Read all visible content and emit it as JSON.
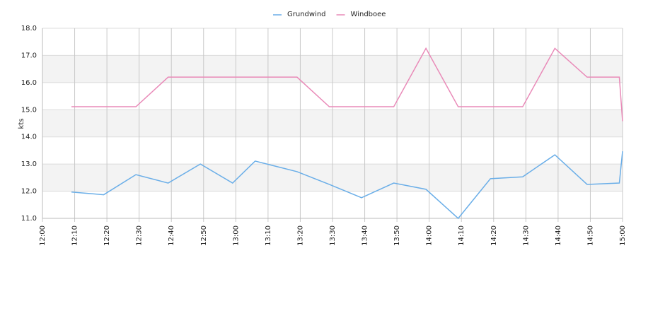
{
  "chart_data": {
    "type": "line",
    "y_label": "kts",
    "x": [
      "12:09",
      "12:19",
      "12:29",
      "12:39",
      "12:49",
      "12:59",
      "13:06",
      "13:19",
      "13:29",
      "13:39",
      "13:49",
      "13:59",
      "14:09",
      "14:19",
      "14:29",
      "14:39",
      "14:49",
      "14:59",
      "15:00"
    ],
    "series": [
      {
        "name": "Grundwind",
        "color": "#6aaee8",
        "values": [
          11.97,
          11.87,
          12.61,
          12.3,
          13.0,
          12.3,
          13.11,
          12.72,
          12.25,
          11.76,
          12.3,
          12.07,
          11.0,
          12.46,
          12.53,
          13.34,
          12.25,
          12.3,
          13.47
        ]
      },
      {
        "name": "Windboee",
        "color": "#e98ab8",
        "values": [
          15.11,
          15.11,
          15.11,
          16.2,
          16.2,
          16.2,
          16.2,
          16.2,
          15.11,
          15.11,
          15.11,
          17.26,
          15.11,
          15.11,
          15.11,
          17.26,
          16.2,
          16.2,
          14.58
        ]
      }
    ],
    "xlim": [
      "12:00",
      "15:00"
    ],
    "xticks": [
      "12:00",
      "12:10",
      "12:20",
      "12:30",
      "12:40",
      "12:50",
      "13:00",
      "13:10",
      "13:20",
      "13:30",
      "13:40",
      "13:50",
      "14:00",
      "14:10",
      "14:20",
      "14:30",
      "14:40",
      "14:50",
      "15:00"
    ],
    "ylim": [
      11,
      18
    ],
    "yticks": [
      {
        "value": 11,
        "label": "11.0"
      },
      {
        "value": 12,
        "label": "12.0"
      },
      {
        "value": 13,
        "label": "13.0"
      },
      {
        "value": 14,
        "label": "14.0"
      },
      {
        "value": 15,
        "label": "15.0"
      },
      {
        "value": 16,
        "label": "16.0"
      },
      {
        "value": 17,
        "label": "17.0"
      },
      {
        "value": 18,
        "label": "18.0"
      }
    ],
    "grid": true
  }
}
